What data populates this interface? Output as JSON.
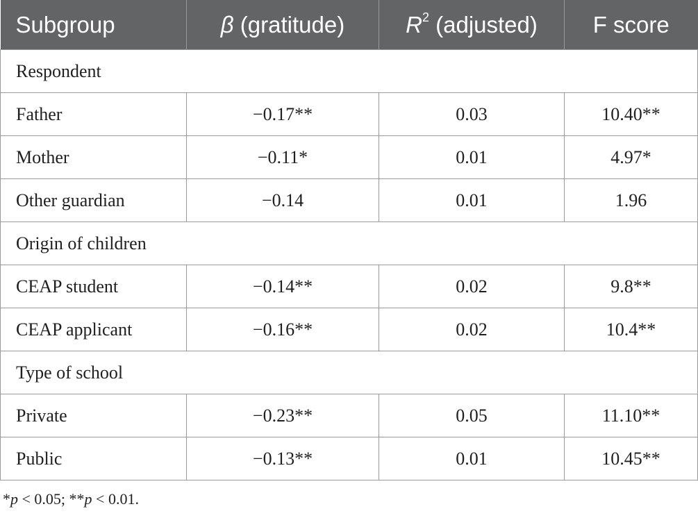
{
  "header": {
    "subgroup": "Subgroup",
    "beta_symbol": "β",
    "beta_rest": " (gratitude)",
    "r_symbol": "R",
    "r_sup": "2",
    "r_rest": " (adjusted)",
    "f_score": "F score"
  },
  "sections": [
    {
      "title": "Respondent",
      "rows": [
        {
          "label": "Father",
          "beta": "−0.17**",
          "r2": "0.03",
          "f": "10.40**"
        },
        {
          "label": "Mother",
          "beta": "−0.11*",
          "r2": "0.01",
          "f": "4.97*"
        },
        {
          "label": "Other guardian",
          "beta": "−0.14",
          "r2": "0.01",
          "f": "1.96"
        }
      ]
    },
    {
      "title": "Origin of children",
      "rows": [
        {
          "label": "CEAP student",
          "beta": "−0.14**",
          "r2": "0.02",
          "f": "9.8**"
        },
        {
          "label": "CEAP applicant",
          "beta": "−0.16**",
          "r2": "0.02",
          "f": "10.4**"
        }
      ]
    },
    {
      "title": "Type of school",
      "rows": [
        {
          "label": "Private",
          "beta": "−0.23**",
          "r2": "0.05",
          "f": "11.10**"
        },
        {
          "label": "Public",
          "beta": "−0.13**",
          "r2": "0.01",
          "f": "10.45**"
        }
      ]
    }
  ],
  "footnote": {
    "star1": "*",
    "p1": "p",
    "t1": " < 0.05; **",
    "p2": "p",
    "t2": " < 0.01."
  },
  "colors": {
    "header_bg": "#636466",
    "header_text": "#ffffff",
    "border": "#9a9a9a"
  }
}
